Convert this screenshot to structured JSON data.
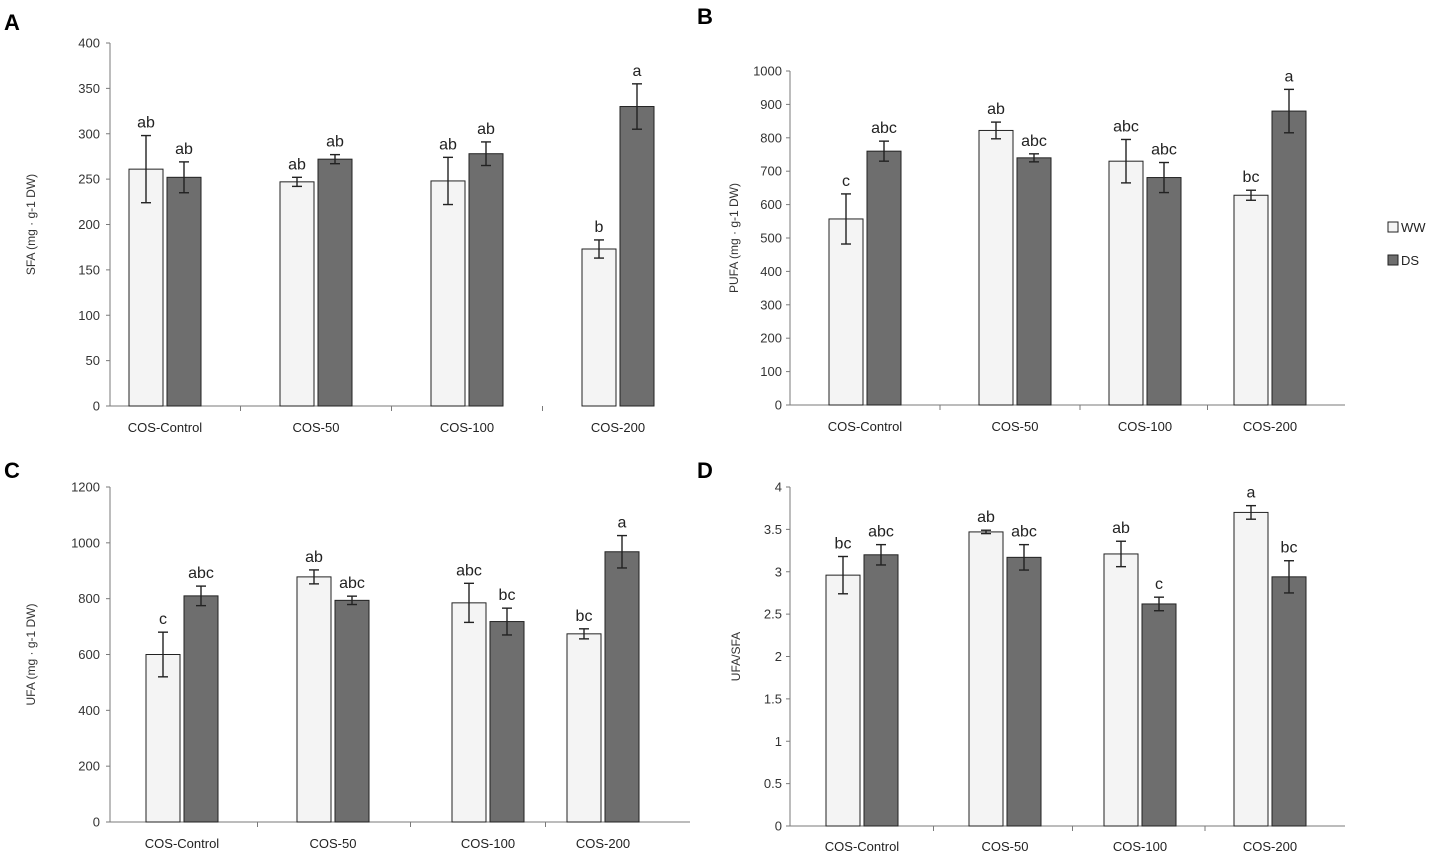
{
  "legend": {
    "items": [
      {
        "label": "WW",
        "color": "#f4f4f4"
      },
      {
        "label": "DS",
        "color": "#6e6e6e"
      }
    ]
  },
  "chart_data": [
    {
      "panel": "A",
      "type": "bar",
      "ylabel": "SFA (mg · g-1 DW)",
      "ylim": [
        0,
        400
      ],
      "yticks": [
        "0",
        "50",
        "100",
        "150",
        "200",
        "250",
        "300",
        "350",
        "400"
      ],
      "categories": [
        "COS-Control",
        "COS-50",
        "COS-100",
        "COS-200"
      ],
      "series": [
        {
          "name": "WW",
          "color": "#f4f4f4",
          "values": [
            261,
            247,
            248,
            173
          ],
          "errors": [
            37,
            5,
            26,
            10
          ],
          "labels": [
            "ab",
            "ab",
            "ab",
            "b"
          ]
        },
        {
          "name": "DS",
          "color": "#6e6e6e",
          "values": [
            252,
            272,
            278,
            330
          ],
          "errors": [
            17,
            5,
            13,
            25
          ],
          "labels": [
            "ab",
            "ab",
            "ab",
            "a"
          ]
        }
      ]
    },
    {
      "panel": "B",
      "type": "bar",
      "ylabel": "PUFA (mg · g-1 DW)",
      "ylim": [
        0,
        1000
      ],
      "yticks": [
        "0",
        "100",
        "200",
        "300",
        "400",
        "500",
        "600",
        "700",
        "800",
        "900",
        "1000"
      ],
      "categories": [
        "COS-Control",
        "COS-50",
        "COS-100",
        "COS-200"
      ],
      "series": [
        {
          "name": "WW",
          "color": "#f4f4f4",
          "values": [
            557,
            822,
            730,
            628
          ],
          "errors": [
            75,
            25,
            65,
            15
          ],
          "labels": [
            "c",
            "ab",
            "abc",
            "bc"
          ]
        },
        {
          "name": "DS",
          "color": "#6e6e6e",
          "values": [
            760,
            740,
            681,
            880
          ],
          "errors": [
            30,
            12,
            45,
            65
          ],
          "labels": [
            "abc",
            "abc",
            "abc",
            "a"
          ]
        }
      ]
    },
    {
      "panel": "C",
      "type": "bar",
      "ylabel": "UFA (mg · g-1 DW)",
      "ylim": [
        0,
        1200
      ],
      "yticks": [
        "0",
        "200",
        "400",
        "600",
        "800",
        "1000",
        "1200"
      ],
      "categories": [
        "COS-Control",
        "COS-50",
        "COS-100",
        "COS-200"
      ],
      "series": [
        {
          "name": "WW",
          "color": "#f4f4f4",
          "values": [
            600,
            878,
            785,
            674
          ],
          "errors": [
            80,
            25,
            70,
            18
          ],
          "labels": [
            "c",
            "ab",
            "abc",
            "bc"
          ]
        },
        {
          "name": "DS",
          "color": "#6e6e6e",
          "values": [
            810,
            794,
            718,
            968
          ],
          "errors": [
            35,
            15,
            48,
            58
          ],
          "labels": [
            "abc",
            "abc",
            "bc",
            "a"
          ]
        }
      ]
    },
    {
      "panel": "D",
      "type": "bar",
      "ylabel": "UFA/SFA",
      "ylim": [
        0,
        4
      ],
      "yticks": [
        "0",
        "0.5",
        "1",
        "1.5",
        "2",
        "2.5",
        "3",
        "3.5",
        "4"
      ],
      "categories": [
        "COS-Control",
        "COS-50",
        "COS-100",
        "COS-200"
      ],
      "series": [
        {
          "name": "WW",
          "color": "#f4f4f4",
          "values": [
            2.96,
            3.47,
            3.21,
            3.7
          ],
          "errors": [
            0.22,
            0.02,
            0.15,
            0.08
          ],
          "labels": [
            "bc",
            "ab",
            "ab",
            "a"
          ]
        },
        {
          "name": "DS",
          "color": "#6e6e6e",
          "values": [
            3.2,
            3.17,
            2.62,
            2.94
          ],
          "errors": [
            0.12,
            0.15,
            0.08,
            0.19
          ],
          "labels": [
            "abc",
            "abc",
            "c",
            "bc"
          ]
        }
      ]
    }
  ]
}
